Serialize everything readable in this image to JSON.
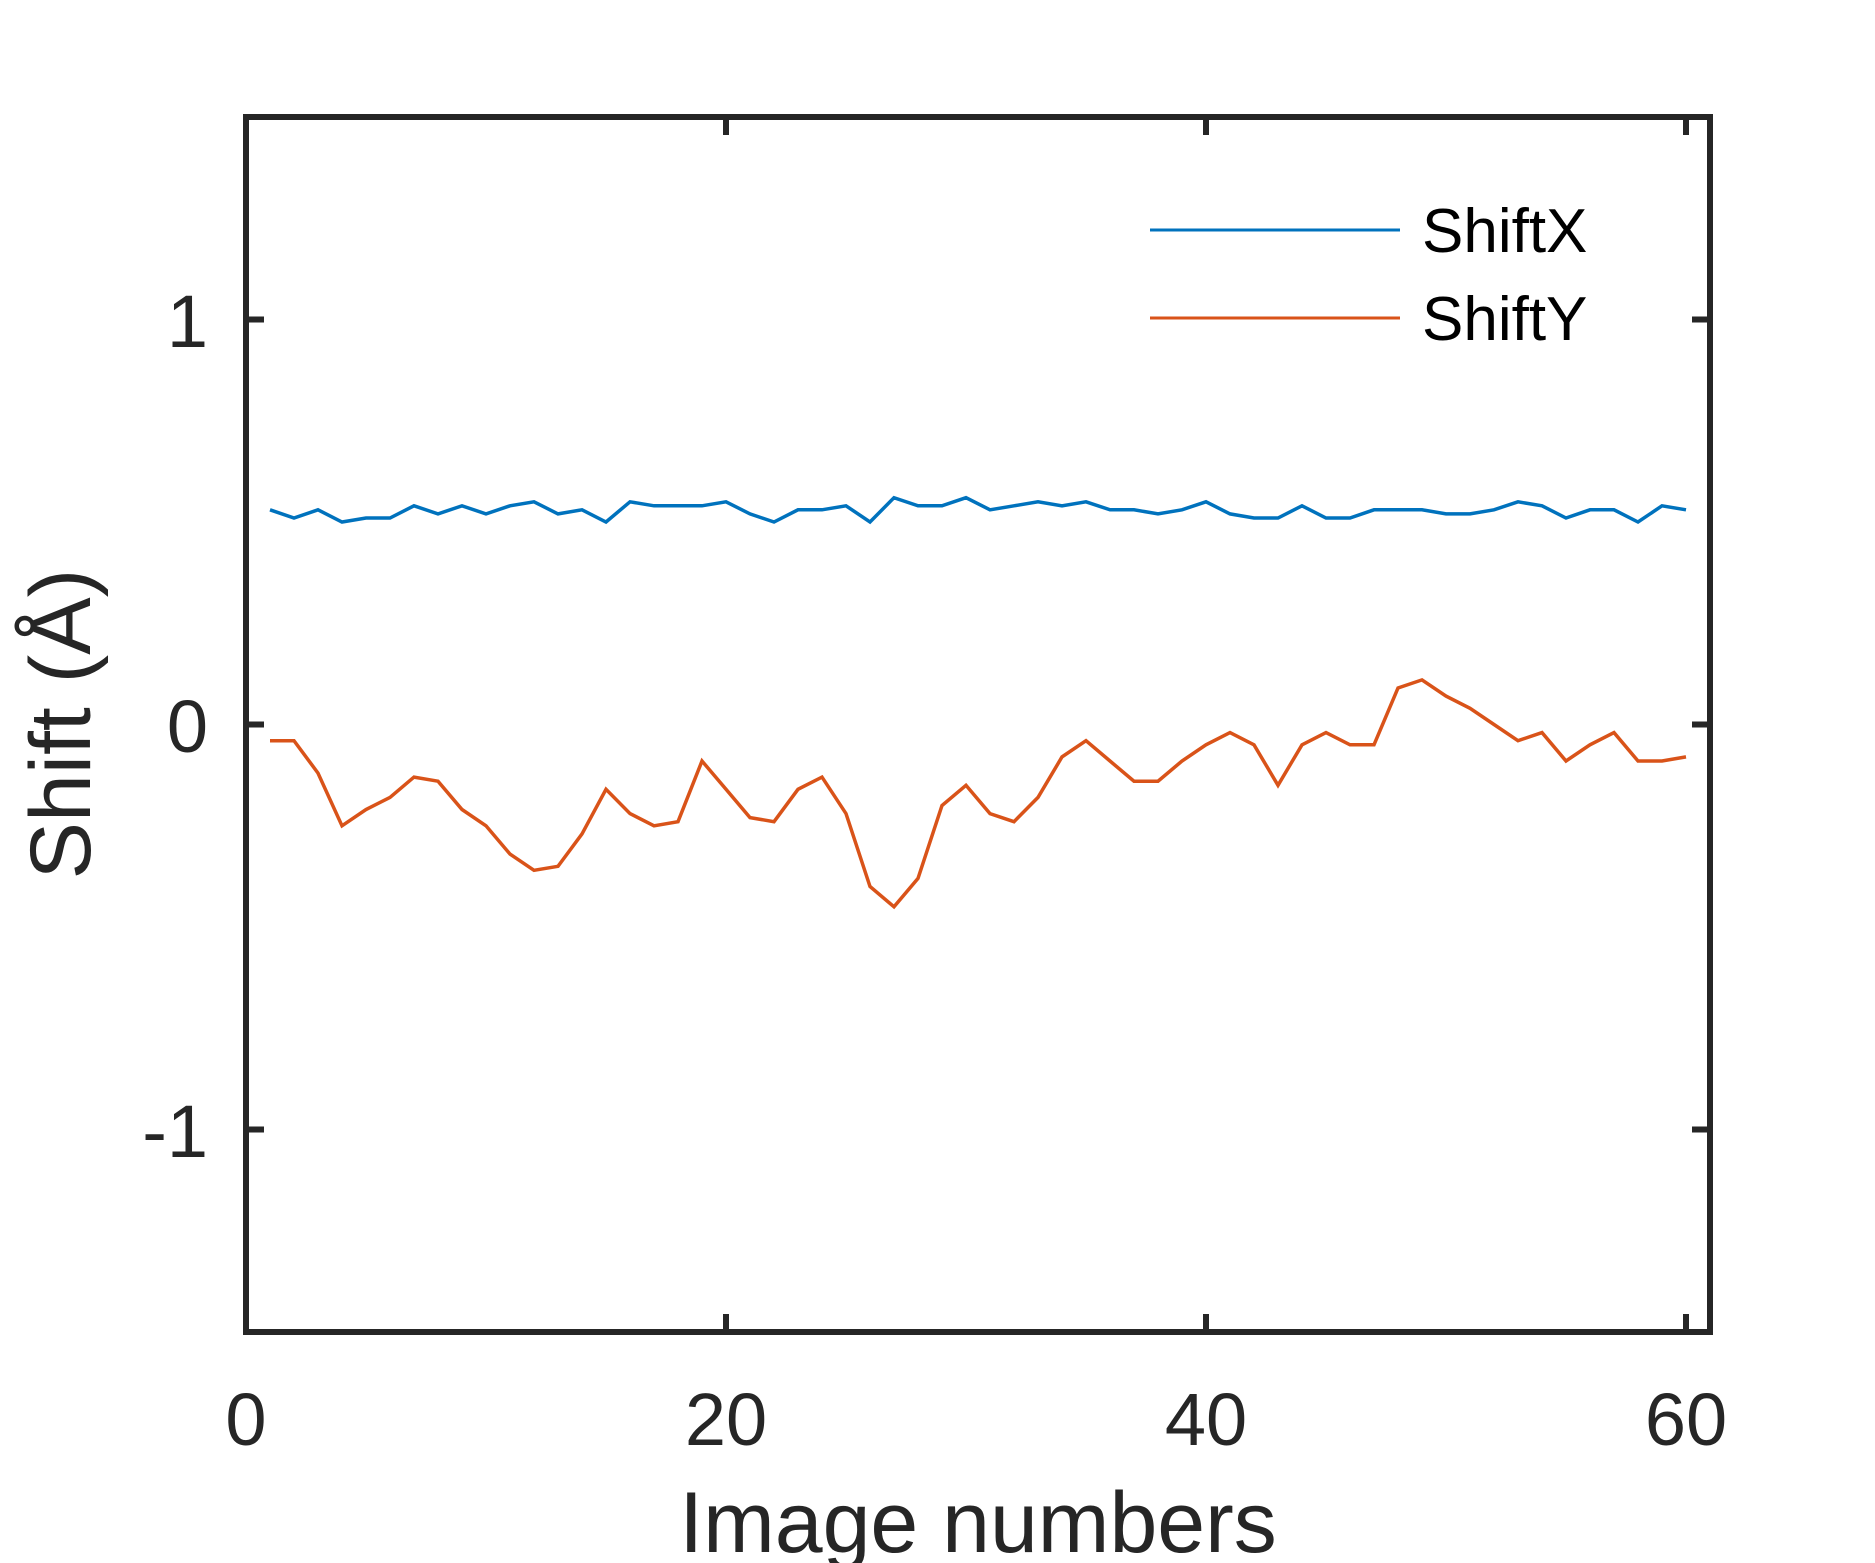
{
  "chart_data": {
    "type": "line",
    "title": "",
    "xlabel": "Image numbers",
    "ylabel": "Shift (Å)",
    "xlim": [
      0,
      61
    ],
    "ylim": [
      -1.5,
      1.5
    ],
    "xticks": [
      0,
      20,
      40,
      60
    ],
    "xtick_labels": [
      "0",
      "20",
      "40",
      "60"
    ],
    "yticks": [
      -1,
      0,
      1
    ],
    "ytick_labels": [
      "-1",
      "0",
      "1"
    ],
    "grid": false,
    "legend_position": "top-right",
    "x": [
      1,
      2,
      3,
      4,
      5,
      6,
      7,
      8,
      9,
      10,
      11,
      12,
      13,
      14,
      15,
      16,
      17,
      18,
      19,
      20,
      21,
      22,
      23,
      24,
      25,
      26,
      27,
      28,
      29,
      30,
      31,
      32,
      33,
      34,
      35,
      36,
      37,
      38,
      39,
      40,
      41,
      42,
      43,
      44,
      45,
      46,
      47,
      48,
      49,
      50,
      51,
      52,
      53,
      54,
      55,
      56,
      57,
      58,
      59,
      60
    ],
    "series": [
      {
        "name": "ShiftX",
        "color": "#0072BD",
        "values": [
          0.53,
          0.51,
          0.53,
          0.5,
          0.51,
          0.51,
          0.54,
          0.52,
          0.54,
          0.52,
          0.54,
          0.55,
          0.52,
          0.53,
          0.5,
          0.55,
          0.54,
          0.54,
          0.54,
          0.55,
          0.52,
          0.5,
          0.53,
          0.53,
          0.54,
          0.5,
          0.56,
          0.54,
          0.54,
          0.56,
          0.53,
          0.54,
          0.55,
          0.54,
          0.55,
          0.53,
          0.53,
          0.52,
          0.53,
          0.55,
          0.52,
          0.51,
          0.51,
          0.54,
          0.51,
          0.51,
          0.53,
          0.53,
          0.53,
          0.52,
          0.52,
          0.53,
          0.55,
          0.54,
          0.51,
          0.53,
          0.53,
          0.5,
          0.54,
          0.53
        ]
      },
      {
        "name": "ShiftY",
        "color": "#D95319",
        "values": [
          -0.04,
          -0.04,
          -0.12,
          -0.25,
          -0.21,
          -0.18,
          -0.13,
          -0.14,
          -0.21,
          -0.25,
          -0.32,
          -0.36,
          -0.35,
          -0.27,
          -0.16,
          -0.22,
          -0.25,
          -0.24,
          -0.09,
          -0.16,
          -0.23,
          -0.24,
          -0.16,
          -0.13,
          -0.22,
          -0.4,
          -0.45,
          -0.38,
          -0.2,
          -0.15,
          -0.22,
          -0.24,
          -0.18,
          -0.08,
          -0.04,
          -0.09,
          -0.14,
          -0.14,
          -0.09,
          -0.05,
          -0.02,
          -0.05,
          -0.15,
          -0.05,
          -0.02,
          -0.05,
          -0.05,
          0.09,
          0.11,
          0.07,
          0.04,
          0.0,
          -0.04,
          -0.02,
          -0.09,
          -0.05,
          -0.02,
          -0.09,
          -0.09,
          -0.08
        ]
      }
    ]
  }
}
